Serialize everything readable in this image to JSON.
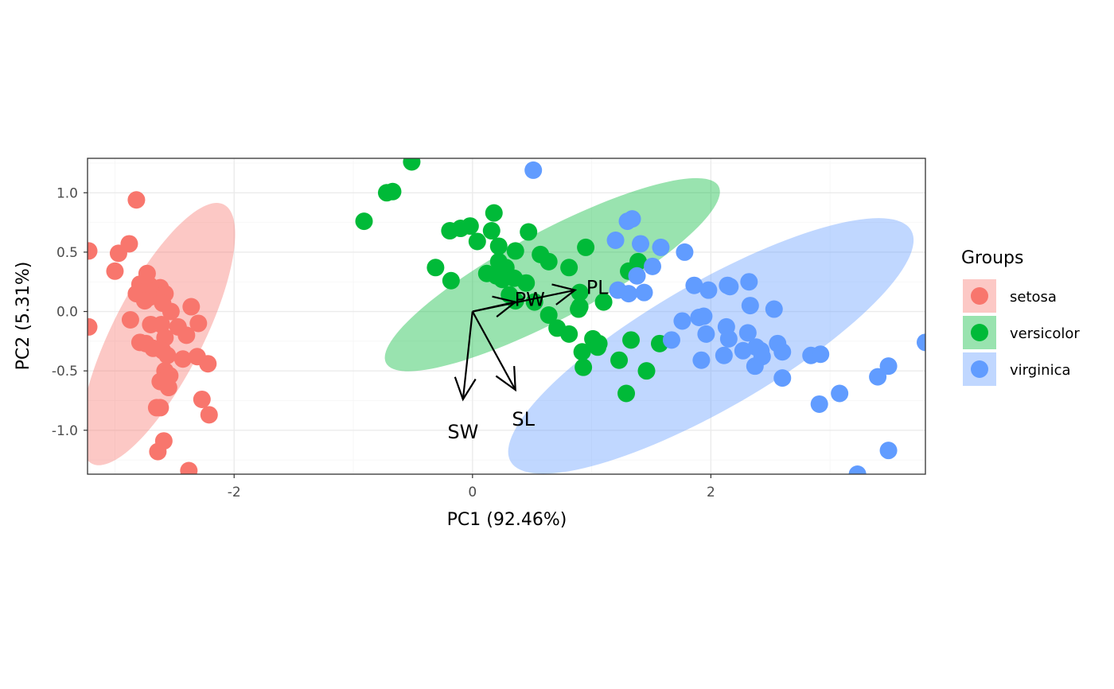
{
  "chart_data": {
    "type": "scatter",
    "title": "",
    "xlabel": "PC1 (92.46%)",
    "ylabel": "PC2 (5.31%)",
    "xlim": [
      -3.23,
      3.8
    ],
    "ylim": [
      -1.37,
      1.29
    ],
    "x_ticks": [
      {
        "v": -2,
        "label": "-2"
      },
      {
        "v": 0,
        "label": "0"
      },
      {
        "v": 2,
        "label": "2"
      }
    ],
    "y_ticks": [
      {
        "v": 1.0,
        "label": "1.0"
      },
      {
        "v": 0.5,
        "label": "0.5"
      },
      {
        "v": 0.0,
        "label": "0.0"
      },
      {
        "v": -0.5,
        "label": "-0.5"
      },
      {
        "v": -1.0,
        "label": "-1.0"
      }
    ],
    "grid": true,
    "legend": {
      "title": "Groups",
      "position": "right"
    },
    "series": [
      {
        "name": "setosa",
        "color": "#F8766D",
        "ellipse": {
          "cx": -2.64,
          "cy": -0.19,
          "rx": 1.22,
          "ry": 0.38,
          "angle_deg": -63
        },
        "points": [
          [
            -2.82,
            0.94
          ],
          [
            -2.88,
            0.57
          ],
          [
            -2.97,
            0.49
          ],
          [
            -3.22,
            0.51
          ],
          [
            -3.0,
            0.34
          ],
          [
            -2.73,
            0.32
          ],
          [
            -2.79,
            0.23
          ],
          [
            -2.71,
            0.22
          ],
          [
            -2.62,
            0.2
          ],
          [
            -2.82,
            0.15
          ],
          [
            -2.66,
            0.18
          ],
          [
            -2.71,
            0.12
          ],
          [
            -2.58,
            0.15
          ],
          [
            -2.75,
            0.09
          ],
          [
            -2.6,
            0.07
          ],
          [
            -2.53,
            0.0
          ],
          [
            -2.36,
            0.04
          ],
          [
            -3.22,
            -0.13
          ],
          [
            -2.87,
            -0.07
          ],
          [
            -2.7,
            -0.11
          ],
          [
            -2.61,
            -0.11
          ],
          [
            -2.47,
            -0.13
          ],
          [
            -2.3,
            -0.1
          ],
          [
            -2.4,
            -0.2
          ],
          [
            -2.58,
            -0.22
          ],
          [
            -2.79,
            -0.26
          ],
          [
            -2.74,
            -0.27
          ],
          [
            -2.68,
            -0.31
          ],
          [
            -2.6,
            -0.33
          ],
          [
            -2.56,
            -0.37
          ],
          [
            -2.43,
            -0.4
          ],
          [
            -2.31,
            -0.38
          ],
          [
            -2.22,
            -0.44
          ],
          [
            -2.58,
            -0.5
          ],
          [
            -2.54,
            -0.54
          ],
          [
            -2.62,
            -0.59
          ],
          [
            -2.55,
            -0.64
          ],
          [
            -2.27,
            -0.74
          ],
          [
            -2.65,
            -0.81
          ],
          [
            -2.62,
            -0.81
          ],
          [
            -2.21,
            -0.87
          ],
          [
            -2.59,
            -1.09
          ],
          [
            -2.64,
            -1.18
          ],
          [
            -2.38,
            -1.34
          ]
        ]
      },
      {
        "name": "versicolor",
        "color": "#00BA38",
        "ellipse": {
          "cx": 0.67,
          "cy": 0.31,
          "rx": 1.58,
          "ry": 0.37,
          "angle_deg": -28
        },
        "points": [
          [
            -0.51,
            1.26
          ],
          [
            -0.72,
            1.0
          ],
          [
            -0.67,
            1.01
          ],
          [
            -0.91,
            0.76
          ],
          [
            0.18,
            0.83
          ],
          [
            -0.02,
            0.72
          ],
          [
            -0.1,
            0.7
          ],
          [
            -0.19,
            0.68
          ],
          [
            0.16,
            0.68
          ],
          [
            0.47,
            0.67
          ],
          [
            0.04,
            0.59
          ],
          [
            0.22,
            0.55
          ],
          [
            0.36,
            0.51
          ],
          [
            0.57,
            0.48
          ],
          [
            0.64,
            0.42
          ],
          [
            0.95,
            0.54
          ],
          [
            0.22,
            0.42
          ],
          [
            0.28,
            0.37
          ],
          [
            0.81,
            0.37
          ],
          [
            -0.31,
            0.37
          ],
          [
            0.12,
            0.32
          ],
          [
            0.2,
            0.3
          ],
          [
            0.25,
            0.27
          ],
          [
            0.35,
            0.28
          ],
          [
            0.45,
            0.24
          ],
          [
            -0.18,
            0.26
          ],
          [
            0.31,
            0.14
          ],
          [
            0.9,
            0.16
          ],
          [
            1.1,
            0.08
          ],
          [
            0.36,
            0.09
          ],
          [
            0.52,
            0.08
          ],
          [
            0.89,
            0.02
          ],
          [
            0.64,
            -0.03
          ],
          [
            1.39,
            0.42
          ],
          [
            1.31,
            0.34
          ],
          [
            0.71,
            -0.14
          ],
          [
            0.81,
            -0.19
          ],
          [
            1.01,
            -0.23
          ],
          [
            1.06,
            -0.27
          ],
          [
            1.33,
            -0.24
          ],
          [
            1.57,
            -0.27
          ],
          [
            0.92,
            -0.34
          ],
          [
            1.05,
            -0.3
          ],
          [
            1.23,
            -0.41
          ],
          [
            0.93,
            -0.47
          ],
          [
            1.46,
            -0.5
          ],
          [
            1.29,
            -0.69
          ],
          [
            0.9,
            0.04
          ]
        ]
      },
      {
        "name": "virginica",
        "color": "#619CFF",
        "ellipse": {
          "cx": 2.0,
          "cy": -0.29,
          "rx": 1.94,
          "ry": 0.53,
          "angle_deg": -30
        },
        "points": [
          [
            0.51,
            1.19
          ],
          [
            1.34,
            0.78
          ],
          [
            1.3,
            0.76
          ],
          [
            1.41,
            0.57
          ],
          [
            1.58,
            0.54
          ],
          [
            1.2,
            0.6
          ],
          [
            1.78,
            0.5
          ],
          [
            1.51,
            0.38
          ],
          [
            1.38,
            0.3
          ],
          [
            1.44,
            0.16
          ],
          [
            1.31,
            0.15
          ],
          [
            1.22,
            0.18
          ],
          [
            1.86,
            0.22
          ],
          [
            1.98,
            0.18
          ],
          [
            2.14,
            0.22
          ],
          [
            2.16,
            0.21
          ],
          [
            2.32,
            0.25
          ],
          [
            2.33,
            0.05
          ],
          [
            2.53,
            0.02
          ],
          [
            1.76,
            -0.08
          ],
          [
            1.9,
            -0.05
          ],
          [
            1.94,
            -0.04
          ],
          [
            1.96,
            -0.19
          ],
          [
            2.13,
            -0.13
          ],
          [
            2.31,
            -0.18
          ],
          [
            2.15,
            -0.23
          ],
          [
            2.27,
            -0.33
          ],
          [
            2.38,
            -0.3
          ],
          [
            2.42,
            -0.33
          ],
          [
            2.43,
            -0.38
          ],
          [
            2.56,
            -0.27
          ],
          [
            2.6,
            -0.34
          ],
          [
            2.37,
            -0.46
          ],
          [
            1.67,
            -0.24
          ],
          [
            1.92,
            -0.41
          ],
          [
            2.11,
            -0.37
          ],
          [
            2.6,
            -0.56
          ],
          [
            2.84,
            -0.37
          ],
          [
            2.92,
            -0.36
          ],
          [
            3.08,
            -0.69
          ],
          [
            2.91,
            -0.78
          ],
          [
            3.4,
            -0.55
          ],
          [
            3.49,
            -0.46
          ],
          [
            3.49,
            -1.17
          ],
          [
            3.8,
            -0.26
          ],
          [
            3.23,
            -1.37
          ]
        ]
      }
    ],
    "loadings": [
      {
        "label": "PL",
        "x": 0.86,
        "y": 0.18
      },
      {
        "label": "PW",
        "x": 0.36,
        "y": 0.08
      },
      {
        "label": "SL",
        "x": 0.36,
        "y": -0.66
      },
      {
        "label": "SW",
        "x": -0.08,
        "y": -0.74
      }
    ]
  }
}
